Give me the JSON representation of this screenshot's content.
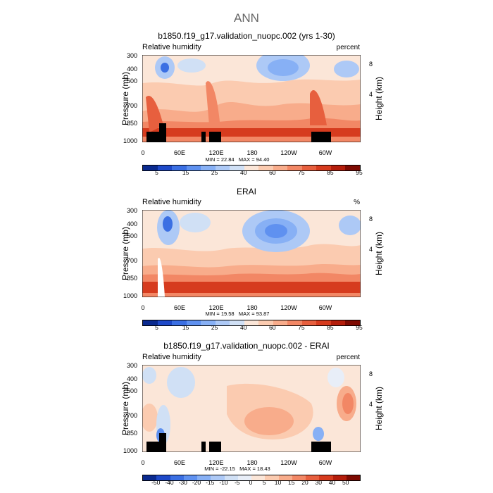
{
  "figure": {
    "title": "ANN",
    "lat_ticks": [
      "0",
      "60E",
      "120E",
      "180",
      "120W",
      "60W"
    ],
    "pressure_ticks": [
      "300",
      "400",
      "500",
      "700",
      "850",
      "1000"
    ],
    "height_ticks": [
      "8",
      "4"
    ],
    "pressure_label": "Pressure (mb)",
    "height_label": "Height (km)"
  },
  "chart_data": [
    {
      "type": "heatmap",
      "title": "b1850.f19_g17.validation_nuopc.002 (yrs 1-30)",
      "left_label": "Relative humidity",
      "units": "percent",
      "min_text": "MIN = 22.84",
      "max_text": "MAX = 94.40",
      "min": 22.84,
      "max": 94.4,
      "x_axis": "longitude",
      "y_axis": "pressure (mb)",
      "ylim": [
        300,
        1000
      ],
      "colorbar_ticks": [
        "5",
        "15",
        "25",
        "40",
        "60",
        "75",
        "85",
        "95"
      ],
      "colorbar_colors": [
        "#0a2a8f",
        "#1e49c8",
        "#3b6fe3",
        "#5f91f0",
        "#87b0f5",
        "#adc9f6",
        "#d0e0f5",
        "#fbe6d8",
        "#fbcbb0",
        "#f8ac8b",
        "#f28765",
        "#e75f3e",
        "#d63b1e",
        "#b41d0b",
        "#7e0a02"
      ]
    },
    {
      "type": "heatmap",
      "title": "ERAI",
      "left_label": "Relative humidity",
      "units": "%",
      "min_text": "MIN = 19.58",
      "max_text": "MAX = 93.87",
      "min": 19.58,
      "max": 93.87,
      "x_axis": "longitude",
      "y_axis": "pressure (mb)",
      "ylim": [
        300,
        1000
      ],
      "colorbar_ticks": [
        "5",
        "15",
        "25",
        "40",
        "60",
        "75",
        "85",
        "95"
      ],
      "colorbar_colors": [
        "#0a2a8f",
        "#1e49c8",
        "#3b6fe3",
        "#5f91f0",
        "#87b0f5",
        "#adc9f6",
        "#d0e0f5",
        "#fbe6d8",
        "#fbcbb0",
        "#f8ac8b",
        "#f28765",
        "#e75f3e",
        "#d63b1e",
        "#b41d0b",
        "#7e0a02"
      ]
    },
    {
      "type": "heatmap",
      "title": "b1850.f19_g17.validation_nuopc.002 - ERAI",
      "left_label": "Relative humidity",
      "units": "percent",
      "min_text": "MIN = -22.15",
      "max_text": "MAX = 18.43",
      "min": -22.15,
      "max": 18.43,
      "x_axis": "longitude",
      "y_axis": "pressure (mb)",
      "ylim": [
        300,
        1000
      ],
      "colorbar_ticks": [
        "-50",
        "-40",
        "-30",
        "-20",
        "-15",
        "-10",
        "-5",
        "0",
        "5",
        "10",
        "15",
        "20",
        "30",
        "40",
        "50"
      ],
      "colorbar_colors": [
        "#0a2a8f",
        "#1e49c8",
        "#3b6fe3",
        "#5f91f0",
        "#87b0f5",
        "#adc9f6",
        "#d0e0f5",
        "#e8eef8",
        "#fbe6d8",
        "#fbcbb0",
        "#f8ac8b",
        "#f28765",
        "#e75f3e",
        "#d63b1e",
        "#b41d0b",
        "#7e0a02"
      ]
    }
  ]
}
